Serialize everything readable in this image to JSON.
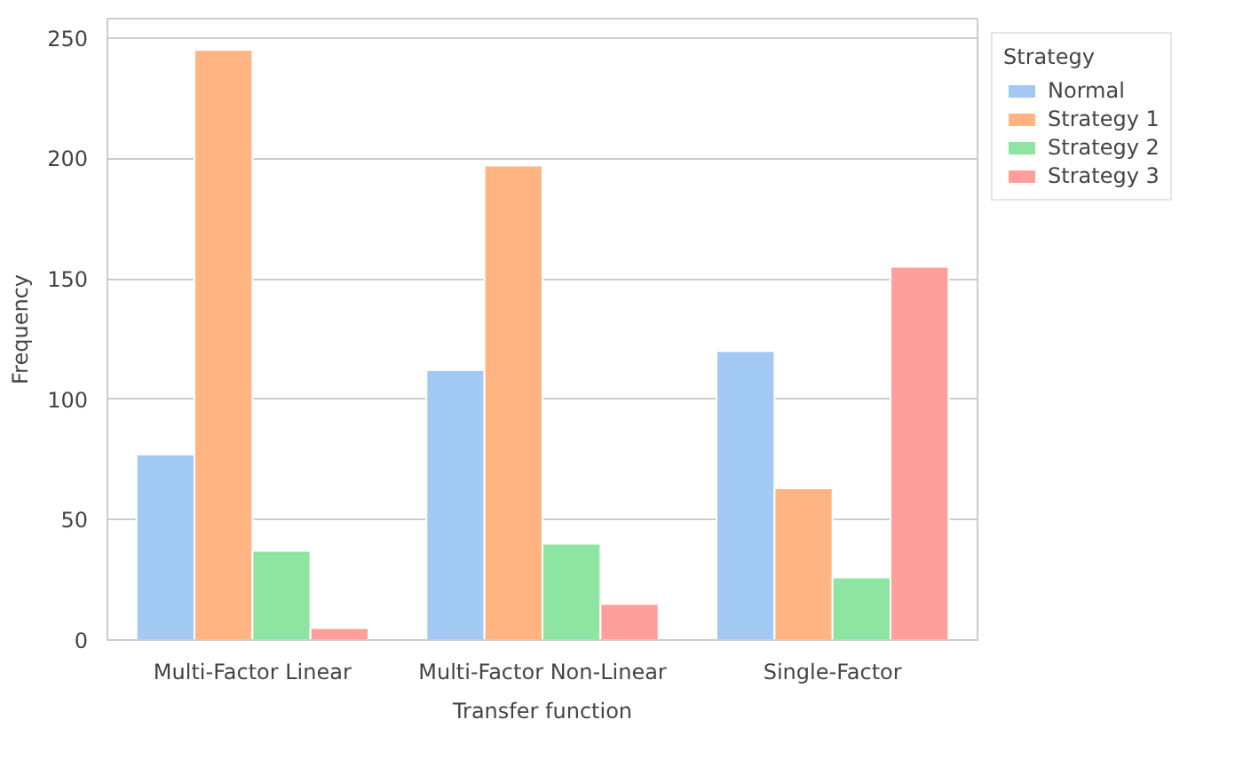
{
  "chart_data": {
    "type": "bar",
    "xlabel": "Transfer function",
    "ylabel": "Frequency",
    "legend_title": "Strategy",
    "categories": [
      "Multi-Factor Linear",
      "Multi-Factor Non-Linear",
      "Single-Factor"
    ],
    "series": [
      {
        "name": "Normal",
        "color": "#a1c9f4",
        "values": [
          77,
          112,
          120
        ]
      },
      {
        "name": "Strategy 1",
        "color": "#ffb482",
        "values": [
          245,
          197,
          63
        ]
      },
      {
        "name": "Strategy 2",
        "color": "#8de5a1",
        "values": [
          37,
          40,
          26
        ]
      },
      {
        "name": "Strategy 3",
        "color": "#ff9f9b",
        "values": [
          5,
          15,
          155
        ]
      }
    ],
    "ylim": [
      0,
      258
    ],
    "yticks": [
      0,
      50,
      100,
      150,
      200,
      250
    ],
    "grid": "y",
    "legend": "top right"
  }
}
